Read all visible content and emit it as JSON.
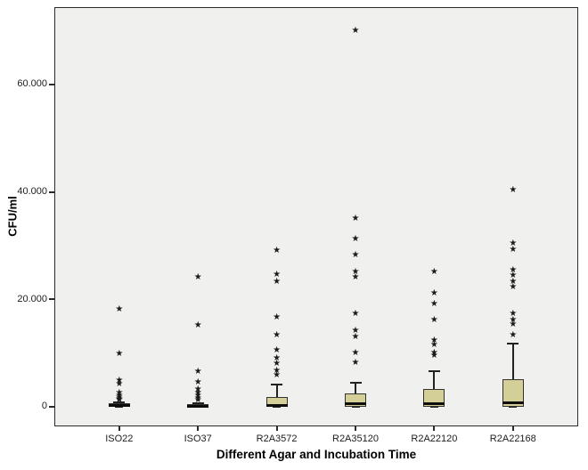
{
  "chart_data": {
    "type": "boxplot",
    "title": "",
    "xlabel": "Different Agar and Incubation Time",
    "ylabel": "CFU/ml",
    "plot_bg": "#f0f0ee",
    "box_fill": "#d3cf97",
    "box_border": "#333333",
    "grid": false,
    "ylim": [
      -3650,
      74400
    ],
    "y_ticks": [
      {
        "value": 0,
        "label": "0"
      },
      {
        "value": 20000,
        "label": "20.000"
      },
      {
        "value": 40000,
        "label": "40.000"
      },
      {
        "value": 60000,
        "label": "60.000"
      }
    ],
    "marker": {
      "name": "star-icon",
      "glyph": "★"
    },
    "categories": [
      "ISO22",
      "ISO37",
      "R2A3572",
      "R2A35120",
      "R2A22120",
      "R2A22168"
    ],
    "series": [
      {
        "category": "ISO22",
        "q1": 0,
        "median": 200,
        "q3": 700,
        "whisker_low": 0,
        "whisker_high": 900,
        "outliers": [
          18000,
          9800,
          4800,
          4200,
          2400,
          2000,
          1600,
          1300,
          1100
        ]
      },
      {
        "category": "ISO37",
        "q1": 0,
        "median": 150,
        "q3": 500,
        "whisker_low": 0,
        "whisker_high": 700,
        "outliers": [
          24000,
          15000,
          6500,
          4500,
          3200,
          2500,
          2000,
          1500,
          1100
        ]
      },
      {
        "category": "R2A3572",
        "q1": 0,
        "median": 300,
        "q3": 1800,
        "whisker_low": 0,
        "whisker_high": 4100,
        "outliers": [
          29000,
          24500,
          23200,
          16500,
          13200,
          10400,
          9000,
          7900,
          6600,
          5800
        ]
      },
      {
        "category": "R2A35120",
        "q1": 0,
        "median": 500,
        "q3": 2500,
        "whisker_low": 0,
        "whisker_high": 4500,
        "outliers": [
          70000,
          35000,
          31200,
          28100,
          25100,
          24000,
          17200,
          14100,
          13000,
          10000,
          8100
        ]
      },
      {
        "category": "R2A22120",
        "q1": 0,
        "median": 600,
        "q3": 3300,
        "whisker_low": 0,
        "whisker_high": 6600,
        "outliers": [
          25100,
          21100,
          19000,
          16100,
          12300,
          11400,
          10000,
          9500
        ]
      },
      {
        "category": "R2A22168",
        "q1": 0,
        "median": 800,
        "q3": 5200,
        "whisker_low": 0,
        "whisker_high": 11800,
        "outliers": [
          40300,
          30400,
          29200,
          25400,
          24400,
          23200,
          22200,
          17200,
          16100,
          15200,
          13300
        ]
      }
    ]
  }
}
